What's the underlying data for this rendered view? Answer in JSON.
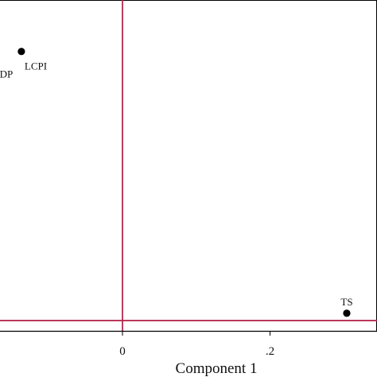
{
  "chart_data": {
    "type": "scatter",
    "title": "",
    "xlabel": "Component 1",
    "ylabel": "",
    "xlim": [
      -0.166,
      0.345
    ],
    "ylim": [
      0.0,
      0.45
    ],
    "x_ticks": [
      {
        "value": 0,
        "label": "0"
      },
      {
        "value": 0.2,
        "label": ".2"
      }
    ],
    "reference_lines": {
      "vertical_x": 0,
      "horizontal_y": 0.014,
      "color": "#b5294e"
    },
    "grid": false,
    "points": [
      {
        "label": "LCPI",
        "x": -0.137,
        "y": 0.38,
        "label_position": "below-right"
      },
      {
        "label": "DP",
        "x": -0.175,
        "y": 0.35,
        "label_position": "right"
      },
      {
        "label": "TS",
        "x": 0.304,
        "y": 0.024,
        "label_position": "above"
      }
    ],
    "colors": {
      "marker": "#000000",
      "axis": "#000000",
      "reference": "#b5294e"
    }
  }
}
